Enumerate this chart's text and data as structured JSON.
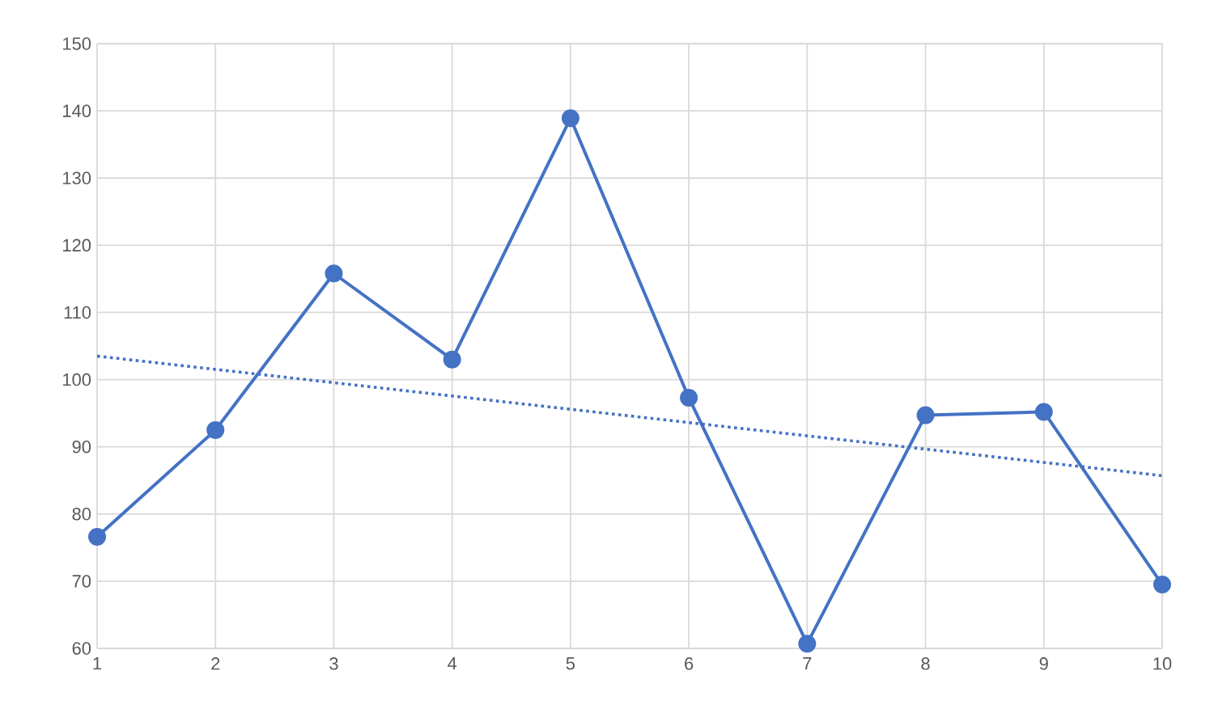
{
  "chart_data": {
    "type": "line",
    "x": [
      1,
      2,
      3,
      4,
      5,
      6,
      7,
      8,
      9,
      10
    ],
    "xlim": [
      1,
      10
    ],
    "xticks": [
      1,
      2,
      3,
      4,
      5,
      6,
      7,
      8,
      9,
      10
    ],
    "ylim": [
      60,
      150
    ],
    "yticks": [
      60,
      70,
      80,
      90,
      100,
      110,
      120,
      130,
      140,
      150
    ],
    "grid": true,
    "marker": "circle",
    "line_style": "solid",
    "series": [
      {
        "color": "#4472c4",
        "values": [
          76.6,
          92.5,
          115.8,
          103,
          138.9,
          97.3,
          60.7,
          94.7,
          95.2,
          69.5
        ]
      },
      {
        "type": "line",
        "color": "#4472c4",
        "x": [
          1,
          10
        ],
        "values": [
          103.5,
          85.7
        ],
        "marker": "none",
        "line_style": "dotted"
      }
    ]
  }
}
